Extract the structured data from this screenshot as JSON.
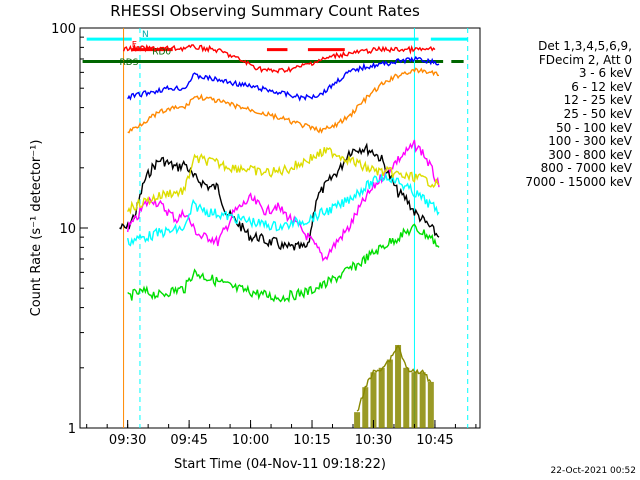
{
  "chart_data": {
    "type": "line",
    "title": "RHESSI Observing Summary Count Rates",
    "xlabel": "Start Time (04-Nov-11 09:18:22)",
    "ylabel": "Count Rate (s⁻¹ detector⁻¹)",
    "yscale": "log",
    "ylim": [
      1,
      100
    ],
    "xlim": [
      "09:18:22",
      "10:56:00"
    ],
    "x_ticks": [
      "09:30",
      "09:45",
      "10:00",
      "10:15",
      "10:30",
      "10:45"
    ],
    "y_ticks": [
      "1",
      "10",
      "100"
    ],
    "grid": false,
    "legend_position": "right",
    "legend_header": [
      "Det 1,3,4,5,6,9,",
      "FDecim 2, Att 0"
    ],
    "flag_labels": [
      "N",
      "F",
      "RD0",
      "RDS"
    ],
    "series": [
      {
        "name": "3 - 6 keV",
        "color": "#000000",
        "x": [
          "09:28",
          "09:30",
          "09:32",
          "09:34",
          "09:36",
          "09:38",
          "09:40",
          "09:42",
          "09:44",
          "09:46",
          "09:48",
          "09:50",
          "09:52",
          "09:54",
          "09:56",
          "09:58",
          "10:00",
          "10:02",
          "10:04",
          "10:06",
          "10:08",
          "10:10",
          "10:12",
          "10:14",
          "10:16",
          "10:18",
          "10:20",
          "10:22",
          "10:24",
          "10:26",
          "10:28",
          "10:30",
          "10:32",
          "10:34",
          "10:36",
          "10:38",
          "10:40",
          "10:42",
          "10:44",
          "10:46"
        ],
        "y": [
          10,
          10,
          12,
          17,
          20,
          22,
          21,
          20,
          21,
          18,
          17,
          16,
          16,
          12,
          11,
          10,
          9,
          9,
          8.5,
          8.5,
          8,
          8,
          8,
          8,
          14,
          16,
          18,
          20,
          24,
          25,
          25,
          24,
          22,
          18,
          15,
          14,
          12,
          11,
          10,
          9
        ]
      },
      {
        "name": "6 - 12 keV",
        "color": "#ff00ff",
        "x": [
          "09:30",
          "09:32",
          "09:34",
          "09:36",
          "09:38",
          "09:40",
          "09:42",
          "09:44",
          "09:46",
          "09:48",
          "09:50",
          "09:52",
          "09:54",
          "09:56",
          "09:58",
          "10:00",
          "10:02",
          "10:04",
          "10:06",
          "10:08",
          "10:10",
          "10:12",
          "10:14",
          "10:16",
          "10:18",
          "10:20",
          "10:22",
          "10:24",
          "10:26",
          "10:28",
          "10:30",
          "10:32",
          "10:34",
          "10:36",
          "10:38",
          "10:40",
          "10:42",
          "10:44",
          "10:46"
        ],
        "y": [
          10,
          11,
          13,
          14,
          13,
          12,
          11,
          12,
          10,
          9,
          9,
          8.5,
          10,
          12,
          13,
          14,
          13,
          12,
          13,
          12,
          11,
          10,
          9,
          8,
          7,
          8,
          9,
          10,
          12,
          14,
          16,
          18,
          20,
          22,
          24,
          26,
          24,
          20,
          16
        ]
      },
      {
        "name": "12 - 25 keV",
        "color": "#00dd00",
        "x": [
          "09:30",
          "09:32",
          "09:34",
          "09:36",
          "09:38",
          "09:40",
          "09:42",
          "09:44",
          "09:46",
          "09:48",
          "09:50",
          "09:52",
          "09:54",
          "09:56",
          "09:58",
          "10:00",
          "10:02",
          "10:04",
          "10:06",
          "10:08",
          "10:10",
          "10:12",
          "10:14",
          "10:16",
          "10:18",
          "10:20",
          "10:22",
          "10:24",
          "10:26",
          "10:28",
          "10:30",
          "10:32",
          "10:34",
          "10:36",
          "10:38",
          "10:40",
          "10:42",
          "10:44",
          "10:46"
        ],
        "y": [
          4.5,
          4.7,
          4.8,
          4.7,
          4.6,
          4.8,
          4.9,
          5.0,
          6.0,
          5.8,
          5.6,
          5.4,
          5.2,
          5.0,
          4.9,
          4.8,
          4.7,
          4.6,
          4.5,
          4.5,
          4.6,
          4.7,
          4.8,
          5.0,
          5.2,
          5.5,
          5.8,
          6.2,
          6.5,
          7.0,
          7.5,
          8.0,
          8.5,
          9.0,
          9.5,
          10,
          9.5,
          9,
          8
        ]
      },
      {
        "name": "25 - 50 keV",
        "color": "#00ffff",
        "x": [
          "09:30",
          "09:32",
          "09:34",
          "09:36",
          "09:38",
          "09:40",
          "09:42",
          "09:44",
          "09:46",
          "09:48",
          "09:50",
          "09:52",
          "09:54",
          "09:56",
          "09:58",
          "10:00",
          "10:02",
          "10:04",
          "10:06",
          "10:08",
          "10:10",
          "10:12",
          "10:14",
          "10:16",
          "10:18",
          "10:20",
          "10:22",
          "10:24",
          "10:26",
          "10:28",
          "10:30",
          "10:32",
          "10:34",
          "10:36",
          "10:38",
          "10:40",
          "10:42",
          "10:44",
          "10:46"
        ],
        "y": [
          8.5,
          8.8,
          9.0,
          9.2,
          9.5,
          9.6,
          9.8,
          10,
          13,
          12.5,
          12,
          11.8,
          11.5,
          11.2,
          11,
          10.8,
          10.5,
          10.4,
          10.2,
          10.2,
          10.5,
          10.8,
          11,
          11.5,
          12,
          12.5,
          13,
          14,
          15,
          16,
          17,
          18,
          18,
          17,
          16,
          15,
          14,
          13,
          12
        ]
      },
      {
        "name": "50 - 100 keV",
        "color": "#dddd00",
        "x": [
          "09:30",
          "09:32",
          "09:34",
          "09:36",
          "09:38",
          "09:40",
          "09:42",
          "09:44",
          "09:46",
          "09:48",
          "09:50",
          "09:52",
          "09:54",
          "09:56",
          "09:58",
          "10:00",
          "10:02",
          "10:04",
          "10:06",
          "10:08",
          "10:10",
          "10:12",
          "10:14",
          "10:16",
          "10:18",
          "10:20",
          "10:22",
          "10:24",
          "10:26",
          "10:28",
          "10:30",
          "10:32",
          "10:34",
          "10:36",
          "10:38",
          "10:40",
          "10:42",
          "10:44",
          "10:46"
        ],
        "y": [
          12.5,
          13,
          13.5,
          14,
          14.5,
          15,
          15,
          15.5,
          22,
          22,
          21.5,
          21,
          20.5,
          20,
          20,
          19.5,
          19,
          19,
          19,
          19.5,
          20,
          21,
          22,
          23,
          24,
          24,
          23,
          22,
          21,
          20,
          19.5,
          19,
          19,
          18.5,
          18,
          18,
          17.5,
          17,
          16.5
        ]
      },
      {
        "name": "100 - 300 keV",
        "color": "#ff0000",
        "x": [
          "09:29",
          "09:31",
          "09:33",
          "09:35",
          "09:37",
          "09:39",
          "09:41",
          "09:43",
          "09:45",
          "09:47",
          "09:49",
          "09:51",
          "09:53",
          "09:55",
          "09:57",
          "09:59",
          "10:01",
          "10:03",
          "10:05",
          "10:07",
          "10:09",
          "10:11",
          "10:13",
          "10:15",
          "10:17",
          "10:19",
          "10:21",
          "10:23",
          "10:25",
          "10:27",
          "10:29",
          "10:31",
          "10:33",
          "10:35",
          "10:37",
          "10:39",
          "10:41",
          "10:43",
          "10:45"
        ],
        "y": [
          78,
          79,
          79,
          79,
          79,
          79,
          79,
          79,
          80,
          80,
          79,
          78,
          76,
          73,
          70,
          67,
          64,
          62,
          61,
          61,
          62,
          63,
          65,
          67,
          69,
          71,
          73,
          74,
          75,
          76,
          77,
          78,
          78,
          78,
          78,
          78,
          78,
          78,
          78
        ]
      },
      {
        "name": "300 - 800 keV",
        "color": "#0000ff",
        "x": [
          "09:30",
          "09:32",
          "09:34",
          "09:36",
          "09:38",
          "09:40",
          "09:42",
          "09:44",
          "09:46",
          "09:48",
          "09:50",
          "09:52",
          "09:54",
          "09:56",
          "09:58",
          "10:00",
          "10:02",
          "10:04",
          "10:06",
          "10:08",
          "10:10",
          "10:12",
          "10:14",
          "10:16",
          "10:18",
          "10:20",
          "10:22",
          "10:24",
          "10:26",
          "10:28",
          "10:30",
          "10:32",
          "10:34",
          "10:36",
          "10:38",
          "10:40",
          "10:42",
          "10:44",
          "10:46"
        ],
        "y": [
          45,
          46,
          47,
          48,
          49,
          50,
          50,
          50,
          58,
          57,
          56,
          55,
          54,
          53,
          52,
          51,
          50,
          49,
          48,
          47,
          46,
          45,
          45,
          46,
          48,
          52,
          56,
          60,
          62,
          64,
          65,
          66,
          67,
          68,
          69,
          70,
          69,
          68,
          66
        ]
      },
      {
        "name": "800 - 7000 keV",
        "color": "#ff8800",
        "x": [
          "09:30",
          "09:32",
          "09:34",
          "09:36",
          "09:38",
          "09:40",
          "09:42",
          "09:44",
          "09:46",
          "09:48",
          "09:50",
          "09:52",
          "09:54",
          "09:56",
          "09:58",
          "10:00",
          "10:02",
          "10:04",
          "10:06",
          "10:08",
          "10:10",
          "10:12",
          "10:14",
          "10:16",
          "10:18",
          "10:20",
          "10:22",
          "10:24",
          "10:26",
          "10:28",
          "10:30",
          "10:32",
          "10:34",
          "10:36",
          "10:38",
          "10:40",
          "10:42",
          "10:44",
          "10:46"
        ],
        "y": [
          30,
          32,
          34,
          36,
          38,
          39,
          40,
          40,
          45,
          45,
          44,
          43,
          42,
          41,
          40,
          39,
          38,
          37,
          36,
          35,
          34,
          33,
          32,
          31,
          31,
          32,
          34,
          36,
          40,
          44,
          48,
          52,
          55,
          58,
          60,
          61,
          61,
          60,
          58
        ]
      },
      {
        "name": "7000 - 15000 keV",
        "color": "#888800",
        "x": [
          "10:26",
          "10:28",
          "10:30",
          "10:32",
          "10:34",
          "10:36",
          "10:38",
          "10:40",
          "10:42",
          "10:44"
        ],
        "y": [
          1.2,
          1.6,
          1.9,
          2.0,
          2.2,
          2.6,
          2.0,
          1.9,
          1.9,
          1.7
        ]
      }
    ],
    "timestamp": "22-Oct-2021 00:52"
  }
}
